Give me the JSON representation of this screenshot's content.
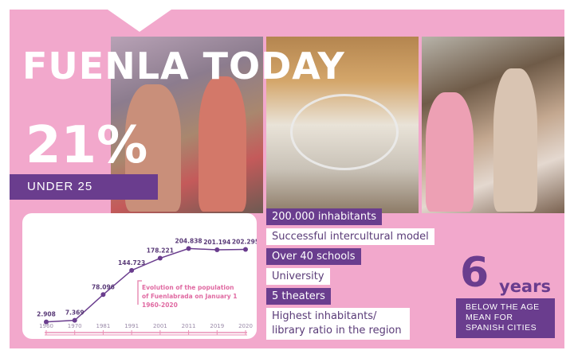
{
  "title": "FUENLA TODAY",
  "stat": {
    "value": "21%",
    "label": "UNDER 25"
  },
  "facts": [
    {
      "text": "200.000 inhabitants",
      "style": "purple"
    },
    {
      "text": "Successful intercultural model",
      "style": "white"
    },
    {
      "text": "Over 40 schools",
      "style": "purple"
    },
    {
      "text": "University",
      "style": "white"
    },
    {
      "text": "5 theaters",
      "style": "purple"
    },
    {
      "text": "Highest inhabitants/ library ratio in the region",
      "style": "white"
    }
  ],
  "age_stat": {
    "value": "6",
    "unit": "years",
    "text": "BELOW THE AGE MEAN FOR SPANISH CITIES"
  },
  "colors": {
    "background": "#f2a8cc",
    "accent": "#6a3d8e",
    "line": "#6a3d8e"
  },
  "chart_data": {
    "type": "line",
    "title": "Evolution of the population of Fuenlabrada on January 1 1960-2020",
    "title_lines": [
      "Evolution of the population",
      "of Fuenlabrada on January 1",
      "1960-2020"
    ],
    "categories": [
      "1960",
      "1970",
      "1981",
      "1991",
      "2001",
      "2011",
      "2019",
      "2020"
    ],
    "values": [
      2908,
      7369,
      78096,
      144723,
      178221,
      204838,
      201194,
      202295
    ],
    "value_labels": [
      "2.908",
      "7.369",
      "78.096",
      "144.723",
      "178.221",
      "204.838",
      "201.194",
      "202.295"
    ],
    "ylim": [
      0,
      210000
    ],
    "grid": false
  }
}
